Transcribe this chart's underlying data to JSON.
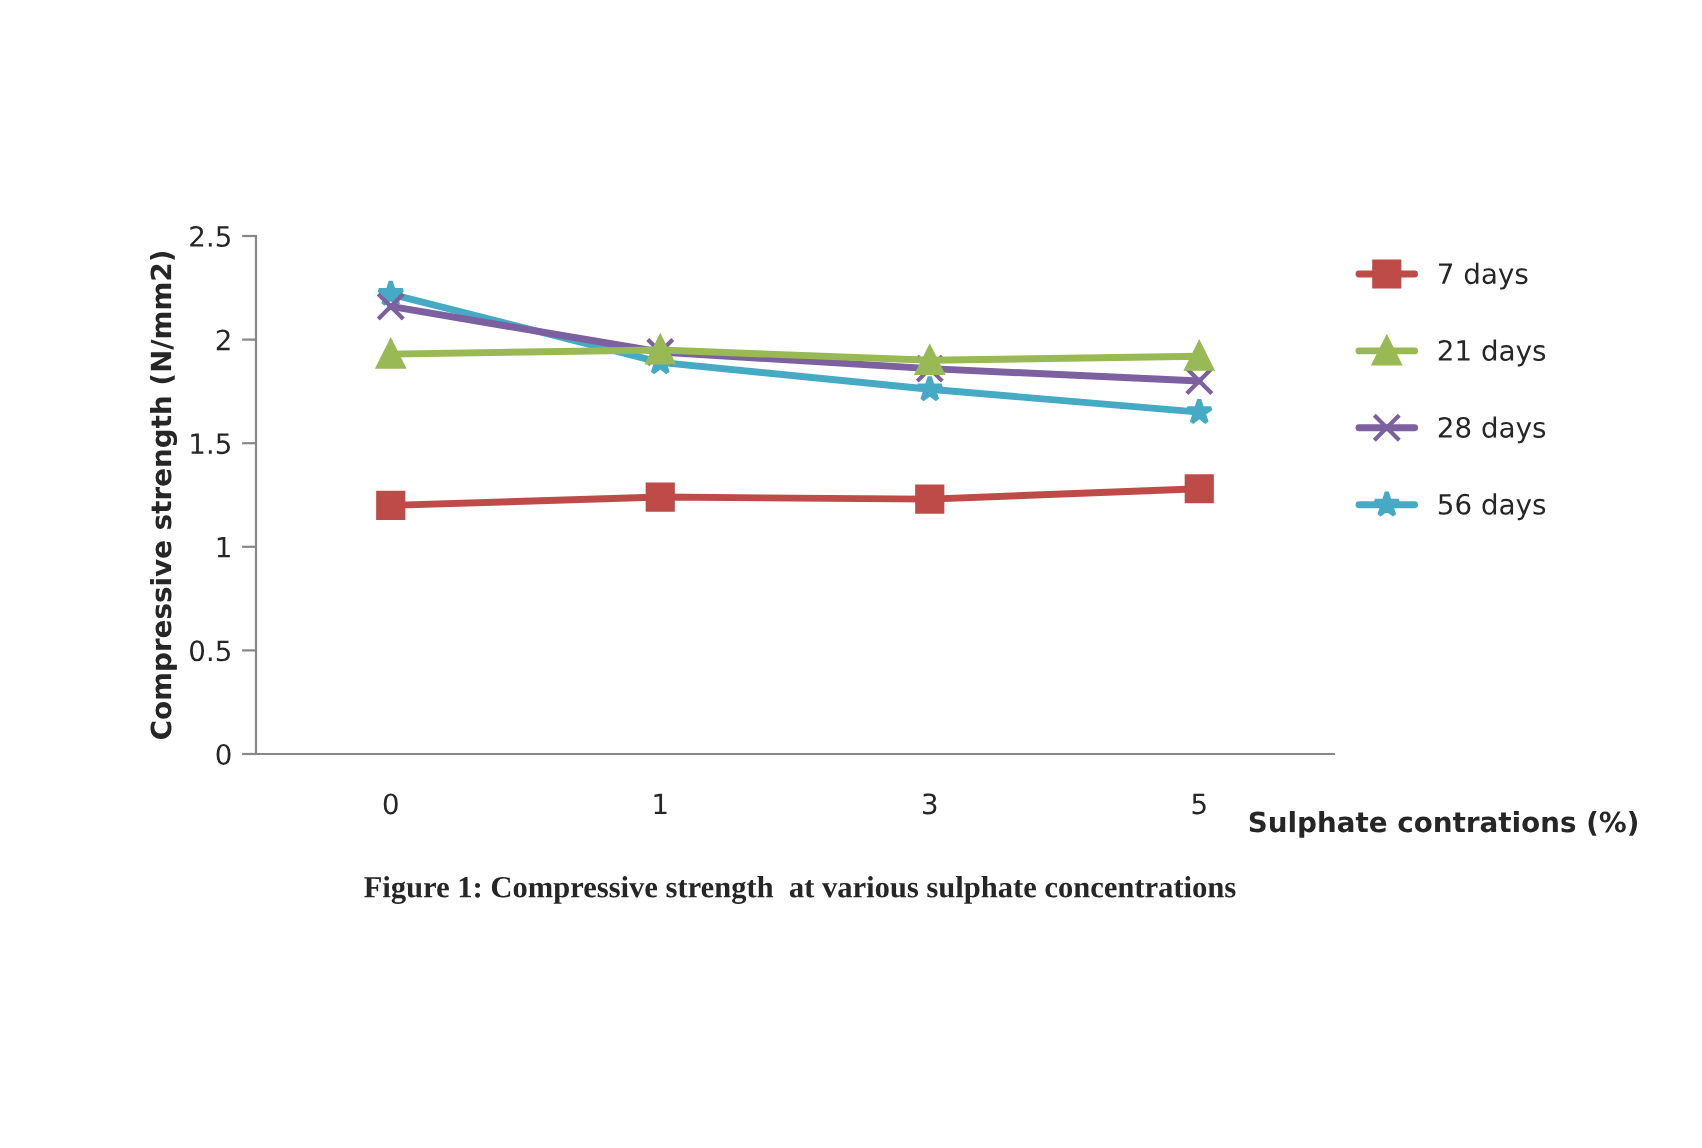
{
  "chart_data": {
    "type": "line",
    "xlabel": "Sulphate contrations (%)",
    "ylabel": "Compressive strength (N/mm2)",
    "categories": [
      "0",
      "1",
      "3",
      "5"
    ],
    "series": [
      {
        "name": "7 days",
        "color": "#be4b48",
        "marker": "square",
        "values": [
          1.2,
          1.24,
          1.23,
          1.28
        ]
      },
      {
        "name": "21 days",
        "color": "#98b954",
        "marker": "triangle",
        "values": [
          1.93,
          1.95,
          1.9,
          1.92
        ]
      },
      {
        "name": "28 days",
        "color": "#7d60a0",
        "marker": "cross",
        "values": [
          2.16,
          1.94,
          1.86,
          1.8
        ]
      },
      {
        "name": "56 days",
        "color": "#46aac5",
        "marker": "star",
        "values": [
          2.22,
          1.89,
          1.76,
          1.65
        ]
      }
    ],
    "ylim": [
      0,
      2.5
    ],
    "yticks": [
      0,
      0.5,
      1,
      1.5,
      2,
      2.5
    ],
    "grid": false,
    "legend": "right",
    "annotations": [
      "Figure 1: Compressive strength  at various sulphate concentrations"
    ]
  }
}
